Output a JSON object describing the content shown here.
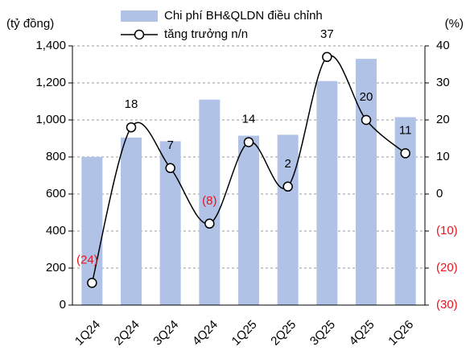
{
  "chart_data": {
    "type": "bar_line",
    "y_label": "(tỷ đồng)",
    "y2_label": "(%)",
    "categories": [
      "1Q24",
      "2Q24",
      "3Q24",
      "4Q24",
      "1Q25",
      "2Q25",
      "3Q25",
      "4Q25",
      "1Q26"
    ],
    "series": [
      {
        "name": "Chi phí BH&QLDN điều chỉnh",
        "type": "bar",
        "color": "#b0c3e6",
        "values": [
          800,
          905,
          885,
          1110,
          915,
          920,
          1210,
          1330,
          1015
        ]
      },
      {
        "name": "tăng trưởng n/n",
        "type": "line",
        "axis": "y2",
        "color": "#000000",
        "values": [
          -24,
          18,
          7,
          -8,
          14,
          2,
          37,
          20,
          11
        ],
        "value_labels": [
          "(24)",
          "18",
          "7",
          "(8)",
          "14",
          "2",
          "37",
          "20",
          "11"
        ]
      }
    ],
    "ylim": [
      0,
      1400
    ],
    "yticks": [
      0,
      200,
      400,
      600,
      800,
      {
        "value": 1000,
        "label": "1,000"
      },
      {
        "value": 1200,
        "label": "1,200"
      },
      {
        "value": 1400,
        "label": "1,400"
      }
    ],
    "y2lim": [
      -30,
      40
    ],
    "y2ticks": [
      {
        "value": -30,
        "label": "(30)"
      },
      {
        "value": -20,
        "label": "(20)"
      },
      {
        "value": -10,
        "label": "(10)"
      },
      0,
      10,
      20,
      30,
      40
    ],
    "grid": true
  }
}
